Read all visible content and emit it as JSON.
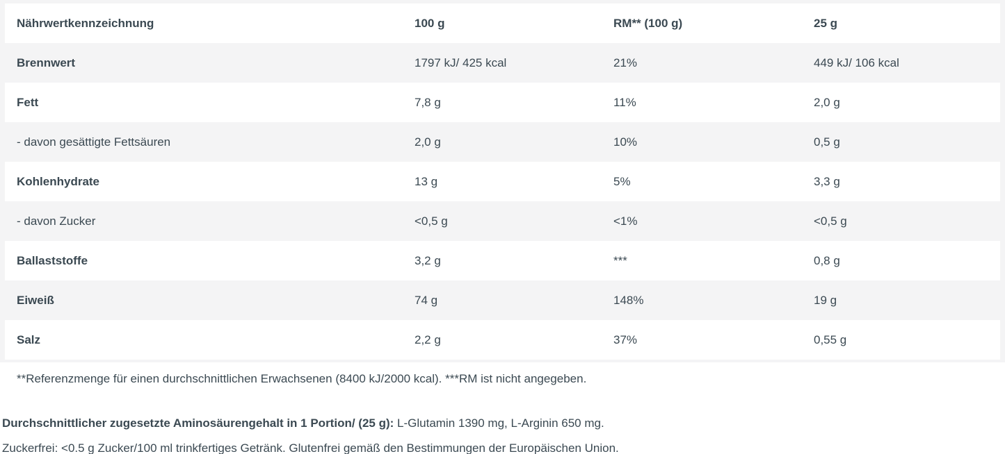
{
  "colors": {
    "text": "#3b4952",
    "stripe_bg": "#f4f4f5",
    "row_bg": "#ffffff"
  },
  "table": {
    "header": {
      "col1": "Nährwertkennzeichnung",
      "col2": "100 g",
      "col3": "RM** (100 g)",
      "col4": "25 g"
    },
    "rows": [
      {
        "label": "Brennwert",
        "sub": false,
        "per100g": "1797 kJ/ 425 kcal",
        "rm": "21%",
        "per25g": "449 kJ/ 106 kcal"
      },
      {
        "label": "Fett",
        "sub": false,
        "per100g": "7,8 g",
        "rm": "11%",
        "per25g": "2,0 g"
      },
      {
        "label": "- davon gesättigte Fettsäuren",
        "sub": true,
        "per100g": "2,0 g",
        "rm": "10%",
        "per25g": "0,5 g"
      },
      {
        "label": "Kohlenhydrate",
        "sub": false,
        "per100g": "13 g",
        "rm": "5%",
        "per25g": "3,3 g"
      },
      {
        "label": "- davon Zucker",
        "sub": true,
        "per100g": "<0,5 g",
        "rm": "<1%",
        "per25g": "<0,5 g"
      },
      {
        "label": "Ballaststoffe",
        "sub": false,
        "per100g": "3,2 g",
        "rm": "***",
        "per25g": "0,8 g"
      },
      {
        "label": "Eiweiß",
        "sub": false,
        "per100g": "74 g",
        "rm": "148%",
        "per25g": "19 g"
      },
      {
        "label": "Salz",
        "sub": false,
        "per100g": "2,2 g",
        "rm": "37%",
        "per25g": "0,55 g"
      }
    ]
  },
  "footnote": "**Referenzmenge für einen durchschnittlichen Erwachsenen (8400 kJ/2000 kcal). ***RM ist nicht angegeben.",
  "amino_note": {
    "bold": "Durchschnittlicher zugesetzte Aminosäurengehalt in 1 Portion/ (25 g):",
    "regular": " L-Glutamin 1390 mg, L-Arginin 650 mg."
  },
  "sugar_note": "Zuckerfrei: <0.5 g Zucker/100 ml trinkfertiges Getränk. Glutenfrei gemäß den Bestimmungen der Europäischen Union."
}
